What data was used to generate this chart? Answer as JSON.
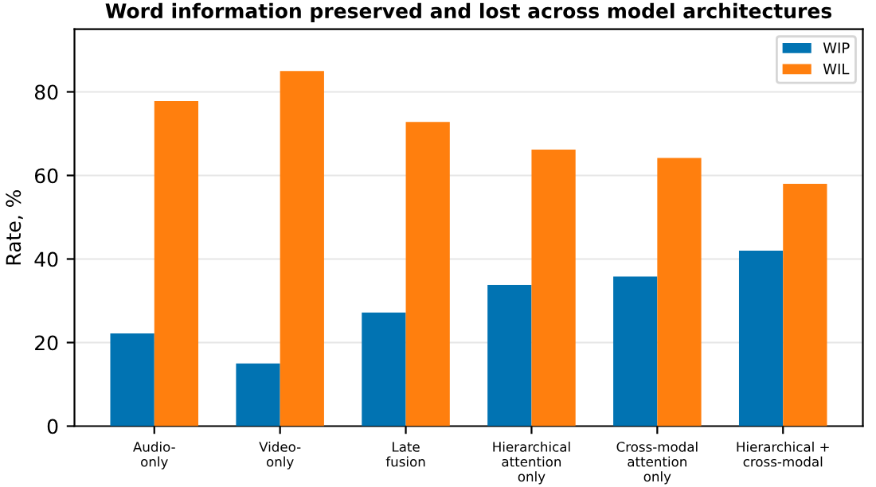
{
  "chart_data": {
    "type": "bar",
    "title": "Word information preserved and lost across model architectures",
    "ylabel": "Rate, %",
    "categories": [
      "Audio-\nonly",
      "Video-\nonly",
      "Late\nfusion",
      "Hierarchical\nattention\nonly",
      "Cross-modal\nattention\nonly",
      "Hierarchical +\ncross-modal"
    ],
    "series": [
      {
        "name": "WIP",
        "color": "#0173b2",
        "values": [
          22.2,
          15,
          27.2,
          33.8,
          35.8,
          42
        ]
      },
      {
        "name": "WIL",
        "color": "#ff7f0e",
        "values": [
          77.8,
          85,
          72.8,
          66.2,
          64.2,
          58
        ]
      }
    ],
    "ylim": [
      0,
      95
    ],
    "yticks": [
      0,
      20,
      40,
      60,
      80
    ],
    "grid": "y",
    "legend": "top right"
  }
}
